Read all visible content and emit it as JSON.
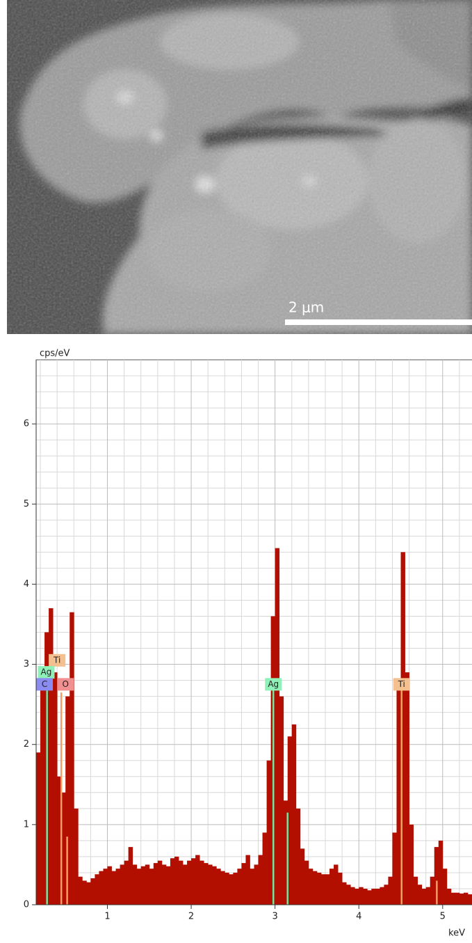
{
  "image": {
    "scale_bar": "2 μm"
  },
  "chart_data": {
    "type": "spectrum",
    "y_label": "cps/eV",
    "x_label": "keV",
    "xlim": [
      0.15,
      5.35
    ],
    "ylim": [
      0,
      6.8
    ],
    "xticks": [
      1,
      2,
      3,
      4,
      5
    ],
    "yticks": [
      0,
      1,
      2,
      3,
      4,
      5,
      6
    ],
    "grid": true,
    "xgrid": [
      0.2,
      0.4,
      0.6,
      0.8,
      1.2,
      1.4,
      1.6,
      1.8,
      2.2,
      2.4,
      2.6,
      2.8,
      3.2,
      3.4,
      3.6,
      3.8,
      4.2,
      4.4,
      4.6,
      4.8,
      5.2
    ],
    "ygrid": [
      0.2,
      0.4,
      0.6,
      0.8,
      1.2,
      1.4,
      1.6,
      1.8,
      2.2,
      2.4,
      2.6,
      2.8,
      3.2,
      3.4,
      3.6,
      3.8,
      4.2,
      4.4,
      4.6,
      4.8,
      5.2,
      5.4,
      5.6,
      5.8,
      6.2,
      6.4,
      6.6
    ],
    "color": "#b30f00",
    "x": [
      0.15,
      0.2,
      0.25,
      0.3,
      0.35,
      0.4,
      0.45,
      0.5,
      0.55,
      0.6,
      0.65,
      0.7,
      0.75,
      0.8,
      0.85,
      0.9,
      0.95,
      1.0,
      1.05,
      1.1,
      1.15,
      1.2,
      1.25,
      1.3,
      1.35,
      1.4,
      1.45,
      1.5,
      1.55,
      1.6,
      1.65,
      1.7,
      1.75,
      1.8,
      1.85,
      1.9,
      1.95,
      2.0,
      2.05,
      2.1,
      2.15,
      2.2,
      2.25,
      2.3,
      2.35,
      2.4,
      2.45,
      2.5,
      2.55,
      2.6,
      2.65,
      2.7,
      2.75,
      2.8,
      2.85,
      2.9,
      2.95,
      3.0,
      3.05,
      3.1,
      3.15,
      3.2,
      3.25,
      3.3,
      3.35,
      3.4,
      3.45,
      3.5,
      3.55,
      3.6,
      3.65,
      3.7,
      3.75,
      3.8,
      3.85,
      3.9,
      3.95,
      4.0,
      4.05,
      4.1,
      4.15,
      4.2,
      4.25,
      4.3,
      4.35,
      4.4,
      4.45,
      4.5,
      4.55,
      4.6,
      4.65,
      4.7,
      4.75,
      4.8,
      4.85,
      4.9,
      4.95,
      5.0,
      5.05,
      5.1,
      5.15,
      5.2,
      5.25,
      5.3
    ],
    "values": [
      1.9,
      2.9,
      3.4,
      3.7,
      2.9,
      1.6,
      1.4,
      2.6,
      3.65,
      1.2,
      0.35,
      0.3,
      0.28,
      0.33,
      0.38,
      0.42,
      0.45,
      0.48,
      0.42,
      0.45,
      0.5,
      0.55,
      0.72,
      0.5,
      0.45,
      0.48,
      0.5,
      0.45,
      0.52,
      0.55,
      0.5,
      0.48,
      0.58,
      0.6,
      0.55,
      0.5,
      0.55,
      0.58,
      0.62,
      0.55,
      0.52,
      0.5,
      0.48,
      0.45,
      0.42,
      0.4,
      0.38,
      0.4,
      0.45,
      0.52,
      0.62,
      0.45,
      0.5,
      0.62,
      0.9,
      1.8,
      3.6,
      4.45,
      2.6,
      1.3,
      2.1,
      2.25,
      1.2,
      0.7,
      0.55,
      0.45,
      0.42,
      0.4,
      0.38,
      0.38,
      0.45,
      0.5,
      0.4,
      0.28,
      0.25,
      0.22,
      0.2,
      0.22,
      0.2,
      0.18,
      0.2,
      0.2,
      0.22,
      0.25,
      0.35,
      0.9,
      2.8,
      4.4,
      2.9,
      1.0,
      0.35,
      0.25,
      0.2,
      0.22,
      0.35,
      0.72,
      0.8,
      0.45,
      0.2,
      0.15,
      0.15,
      0.14,
      0.15,
      0.13
    ],
    "marker_lines": [
      {
        "x": 0.28,
        "height": 2.8,
        "color": "#7fe0a0"
      },
      {
        "x": 0.45,
        "height": 2.65,
        "color": "#f0a060"
      },
      {
        "x": 0.52,
        "height": 0.85,
        "color": "#f0a060"
      },
      {
        "x": 2.98,
        "height": 2.8,
        "color": "#7fe0a0"
      },
      {
        "x": 3.15,
        "height": 1.15,
        "color": "#7fe0a0"
      },
      {
        "x": 4.51,
        "height": 2.8,
        "color": "#f0a060"
      },
      {
        "x": 4.93,
        "height": 0.3,
        "color": "#f0a060"
      }
    ],
    "annotations": [
      {
        "text": "Ti",
        "x": 0.4,
        "y": 3.05,
        "color": "#f4c090"
      },
      {
        "text": "Ag",
        "x": 0.27,
        "y": 2.9,
        "color": "#8ff0b8"
      },
      {
        "text": "C",
        "x": 0.25,
        "y": 2.75,
        "color": "#8c8cf0"
      },
      {
        "text": "O",
        "x": 0.5,
        "y": 2.75,
        "color": "#f09090"
      },
      {
        "text": "Ag",
        "x": 2.98,
        "y": 2.75,
        "color": "#8ff0b8"
      },
      {
        "text": "Ti",
        "x": 4.51,
        "y": 2.75,
        "color": "#f4c090"
      }
    ]
  }
}
